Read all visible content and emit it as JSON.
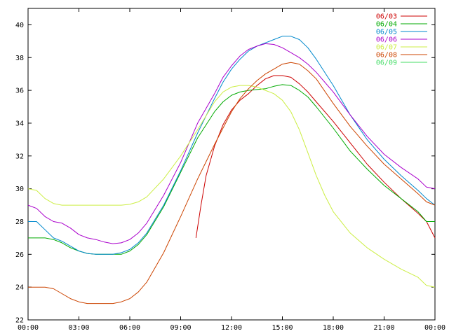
{
  "chart_data": {
    "type": "line",
    "title": "",
    "xlabel": "",
    "ylabel": "",
    "xlim": [
      0,
      24
    ],
    "ylim": [
      22,
      41
    ],
    "grid": false,
    "legend_position": "top-right",
    "x_ticks": [
      {
        "value": 0,
        "label": "00:00"
      },
      {
        "value": 3,
        "label": "03:00"
      },
      {
        "value": 6,
        "label": "06:00"
      },
      {
        "value": 9,
        "label": "09:00"
      },
      {
        "value": 12,
        "label": "12:00"
      },
      {
        "value": 15,
        "label": "15:00"
      },
      {
        "value": 18,
        "label": "18:00"
      },
      {
        "value": 21,
        "label": "21:00"
      },
      {
        "value": 24,
        "label": "00:00"
      }
    ],
    "y_ticks": [
      {
        "value": 22,
        "label": "22"
      },
      {
        "value": 24,
        "label": "24"
      },
      {
        "value": 26,
        "label": "26"
      },
      {
        "value": 28,
        "label": "28"
      },
      {
        "value": 30,
        "label": "30"
      },
      {
        "value": 32,
        "label": "32"
      },
      {
        "value": 34,
        "label": "34"
      },
      {
        "value": 36,
        "label": "36"
      },
      {
        "value": 38,
        "label": "38"
      },
      {
        "value": 40,
        "label": "40"
      }
    ],
    "series": [
      {
        "name": "06/03",
        "color": "#cc0000",
        "x": [
          9.9,
          10.2,
          10.5,
          11.0,
          11.5,
          12.0,
          12.5,
          13.0,
          13.5,
          14.0,
          14.5,
          15.0,
          15.5,
          16.0,
          16.5,
          17.0,
          18.0,
          19.0,
          20.0,
          21.0,
          22.0,
          23.0,
          23.5,
          24.0
        ],
        "y": [
          27.0,
          29.0,
          30.8,
          32.6,
          33.9,
          34.8,
          35.4,
          35.8,
          36.3,
          36.7,
          36.9,
          36.9,
          36.8,
          36.4,
          35.9,
          35.3,
          34.1,
          32.8,
          31.5,
          30.4,
          29.4,
          28.5,
          28.0,
          27.0
        ]
      },
      {
        "name": "06/04",
        "color": "#00aa00",
        "x": [
          0,
          0.5,
          1.0,
          1.5,
          2.0,
          2.5,
          3.0,
          3.5,
          4.0,
          4.5,
          5.0,
          5.5,
          6.0,
          6.5,
          7.0,
          8.0,
          9.0,
          10.0,
          11.0,
          11.5,
          12.0,
          12.5,
          13.0,
          13.5,
          14.0,
          14.5,
          15.0,
          15.5,
          16.0,
          16.5,
          17.0,
          18.0,
          19.0,
          20.0,
          21.0,
          22.0,
          23.0,
          23.5,
          24.0
        ],
        "y": [
          27.0,
          27.0,
          27.0,
          26.9,
          26.7,
          26.4,
          26.2,
          26.05,
          26.0,
          26.0,
          26.0,
          26.0,
          26.2,
          26.6,
          27.2,
          28.9,
          31.0,
          33.1,
          34.7,
          35.3,
          35.7,
          35.9,
          36.0,
          36.05,
          36.1,
          36.25,
          36.35,
          36.3,
          36.0,
          35.6,
          35.0,
          33.7,
          32.3,
          31.2,
          30.2,
          29.4,
          28.6,
          28.0,
          28.0
        ]
      },
      {
        "name": "06/05",
        "color": "#0088cc",
        "x": [
          0,
          0.5,
          1.0,
          1.5,
          2.0,
          2.5,
          3.0,
          3.5,
          4.0,
          4.5,
          5.0,
          5.5,
          6.0,
          6.5,
          7.0,
          8.0,
          9.0,
          10.0,
          11.0,
          11.5,
          12.0,
          12.5,
          13.0,
          13.5,
          14.0,
          14.5,
          15.0,
          15.5,
          16.0,
          16.5,
          17.0,
          18.0,
          19.0,
          20.0,
          21.0,
          22.0,
          23.0,
          23.5,
          24.0
        ],
        "y": [
          28.0,
          28.0,
          27.5,
          27.0,
          26.8,
          26.5,
          26.2,
          26.05,
          26.0,
          26.0,
          26.0,
          26.1,
          26.3,
          26.7,
          27.3,
          29.0,
          31.1,
          33.4,
          35.5,
          36.5,
          37.3,
          37.9,
          38.4,
          38.7,
          38.9,
          39.1,
          39.3,
          39.3,
          39.1,
          38.6,
          37.9,
          36.3,
          34.5,
          33.0,
          31.8,
          30.8,
          29.9,
          29.4,
          29.0
        ]
      },
      {
        "name": "06/06",
        "color": "#aa00cc",
        "x": [
          0,
          0.5,
          1.0,
          1.5,
          2.0,
          2.5,
          3.0,
          3.5,
          4.0,
          4.5,
          5.0,
          5.5,
          6.0,
          6.5,
          7.0,
          8.0,
          9.0,
          10.0,
          11.0,
          11.5,
          12.0,
          12.5,
          13.0,
          13.5,
          14.0,
          14.5,
          15.0,
          15.5,
          16.0,
          16.5,
          17.0,
          18.0,
          19.0,
          20.0,
          21.0,
          22.0,
          23.0,
          23.5,
          24.0
        ],
        "y": [
          29.0,
          28.8,
          28.3,
          28.0,
          27.9,
          27.6,
          27.2,
          27.0,
          26.9,
          26.75,
          26.65,
          26.7,
          26.9,
          27.3,
          27.9,
          29.6,
          31.6,
          34.0,
          35.8,
          36.8,
          37.5,
          38.1,
          38.5,
          38.7,
          38.85,
          38.8,
          38.6,
          38.3,
          38.0,
          37.6,
          37.1,
          35.9,
          34.5,
          33.2,
          32.1,
          31.3,
          30.6,
          30.1,
          30.0
        ]
      },
      {
        "name": "06/07",
        "color": "#ccee44",
        "x": [
          0,
          0.5,
          1.0,
          1.5,
          2.0,
          2.5,
          3.0,
          4.0,
          5.0,
          5.5,
          6.0,
          6.5,
          7.0,
          8.0,
          9.0,
          10.0,
          11.0,
          11.5,
          12.0,
          12.5,
          13.0,
          13.5,
          14.0,
          14.5,
          15.0,
          15.5,
          16.0,
          16.5,
          17.0,
          17.5,
          18.0,
          19.0,
          20.0,
          21.0,
          22.0,
          23.0,
          23.5,
          24.0
        ],
        "y": [
          30.0,
          29.9,
          29.4,
          29.1,
          29.0,
          29.0,
          29.0,
          29.0,
          29.0,
          29.0,
          29.05,
          29.2,
          29.5,
          30.6,
          32.0,
          33.6,
          35.3,
          35.9,
          36.2,
          36.3,
          36.3,
          36.2,
          36.0,
          35.8,
          35.4,
          34.7,
          33.6,
          32.2,
          30.8,
          29.6,
          28.6,
          27.3,
          26.4,
          25.7,
          25.1,
          24.6,
          24.1,
          24.0
        ]
      },
      {
        "name": "06/08",
        "color": "#cc4400",
        "x": [
          0,
          0.5,
          1.0,
          1.5,
          2.0,
          2.5,
          3.0,
          3.5,
          4.0,
          4.5,
          5.0,
          5.5,
          6.0,
          6.5,
          7.0,
          8.0,
          9.0,
          10.0,
          11.0,
          11.5,
          12.0,
          12.5,
          13.0,
          13.5,
          14.0,
          14.5,
          15.0,
          15.5,
          16.0,
          16.5,
          17.0,
          18.0,
          19.0,
          20.0,
          21.0,
          22.0,
          23.0,
          23.5,
          24.0
        ],
        "y": [
          24.0,
          24.0,
          24.0,
          23.9,
          23.6,
          23.3,
          23.1,
          23.0,
          23.0,
          23.0,
          23.0,
          23.1,
          23.3,
          23.7,
          24.3,
          26.1,
          28.3,
          30.6,
          32.7,
          33.7,
          34.7,
          35.5,
          36.1,
          36.6,
          37.0,
          37.3,
          37.6,
          37.7,
          37.6,
          37.2,
          36.7,
          35.2,
          33.8,
          32.6,
          31.5,
          30.6,
          29.7,
          29.2,
          29.0
        ]
      }
    ],
    "legend_only_entries": [
      {
        "name": "06/09",
        "color": "#44dd66"
      }
    ]
  }
}
